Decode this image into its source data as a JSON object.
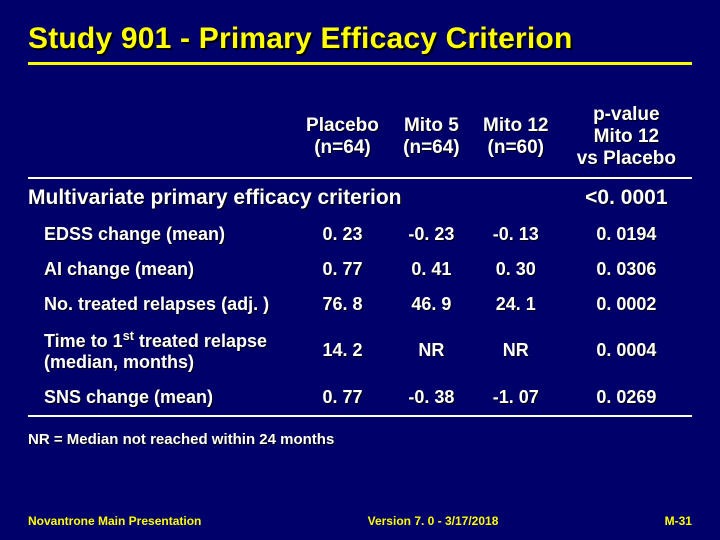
{
  "title": "Study 901 - Primary Efficacy Criterion",
  "columns": {
    "c1": {
      "line1": "Placebo",
      "line2": "(n=64)"
    },
    "c2": {
      "line1": "Mito 5",
      "line2": "(n=64)"
    },
    "c3": {
      "line1": "Mito 12",
      "line2": "(n=60)"
    },
    "c4": {
      "line1": "p-value",
      "line2": "Mito 12",
      "line3": "vs Placebo"
    }
  },
  "section": {
    "label": "Multivariate primary efficacy criterion",
    "pvalue": "<0. 0001"
  },
  "rows": {
    "r1": {
      "label": "EDSS change (mean)",
      "v1": "0. 23",
      "v2": "-0. 23",
      "v3": "-0. 13",
      "v4": "0. 0194"
    },
    "r2": {
      "label": "AI change (mean)",
      "v1": "0. 77",
      "v2": "0. 41",
      "v3": "0. 30",
      "v4": "0. 0306"
    },
    "r3": {
      "label": "No. treated relapses  (adj. )",
      "v1": "76. 8",
      "v2": "46. 9",
      "v3": "24. 1",
      "v4": "0. 0002"
    },
    "r4": {
      "label_pre": "Time to 1",
      "label_ord": "st",
      "label_post": " treated relapse (median, months)",
      "v1": "14. 2",
      "v2": "NR",
      "v3": "NR",
      "v4": "0. 0004"
    },
    "r5": {
      "label": "SNS change (mean)",
      "v1": "0. 77",
      "v2": "-0. 38",
      "v3": "-1. 07",
      "v4": "0. 0269"
    }
  },
  "footnote": "NR = Median not reached within 24 months",
  "footer": {
    "left": "Novantrone Main Presentation",
    "center": "Version 7. 0  -  3/17/2018",
    "right": "M-31"
  },
  "colors": {
    "background": "#00006b",
    "accent": "#ffff00",
    "text": "#ffffff"
  }
}
